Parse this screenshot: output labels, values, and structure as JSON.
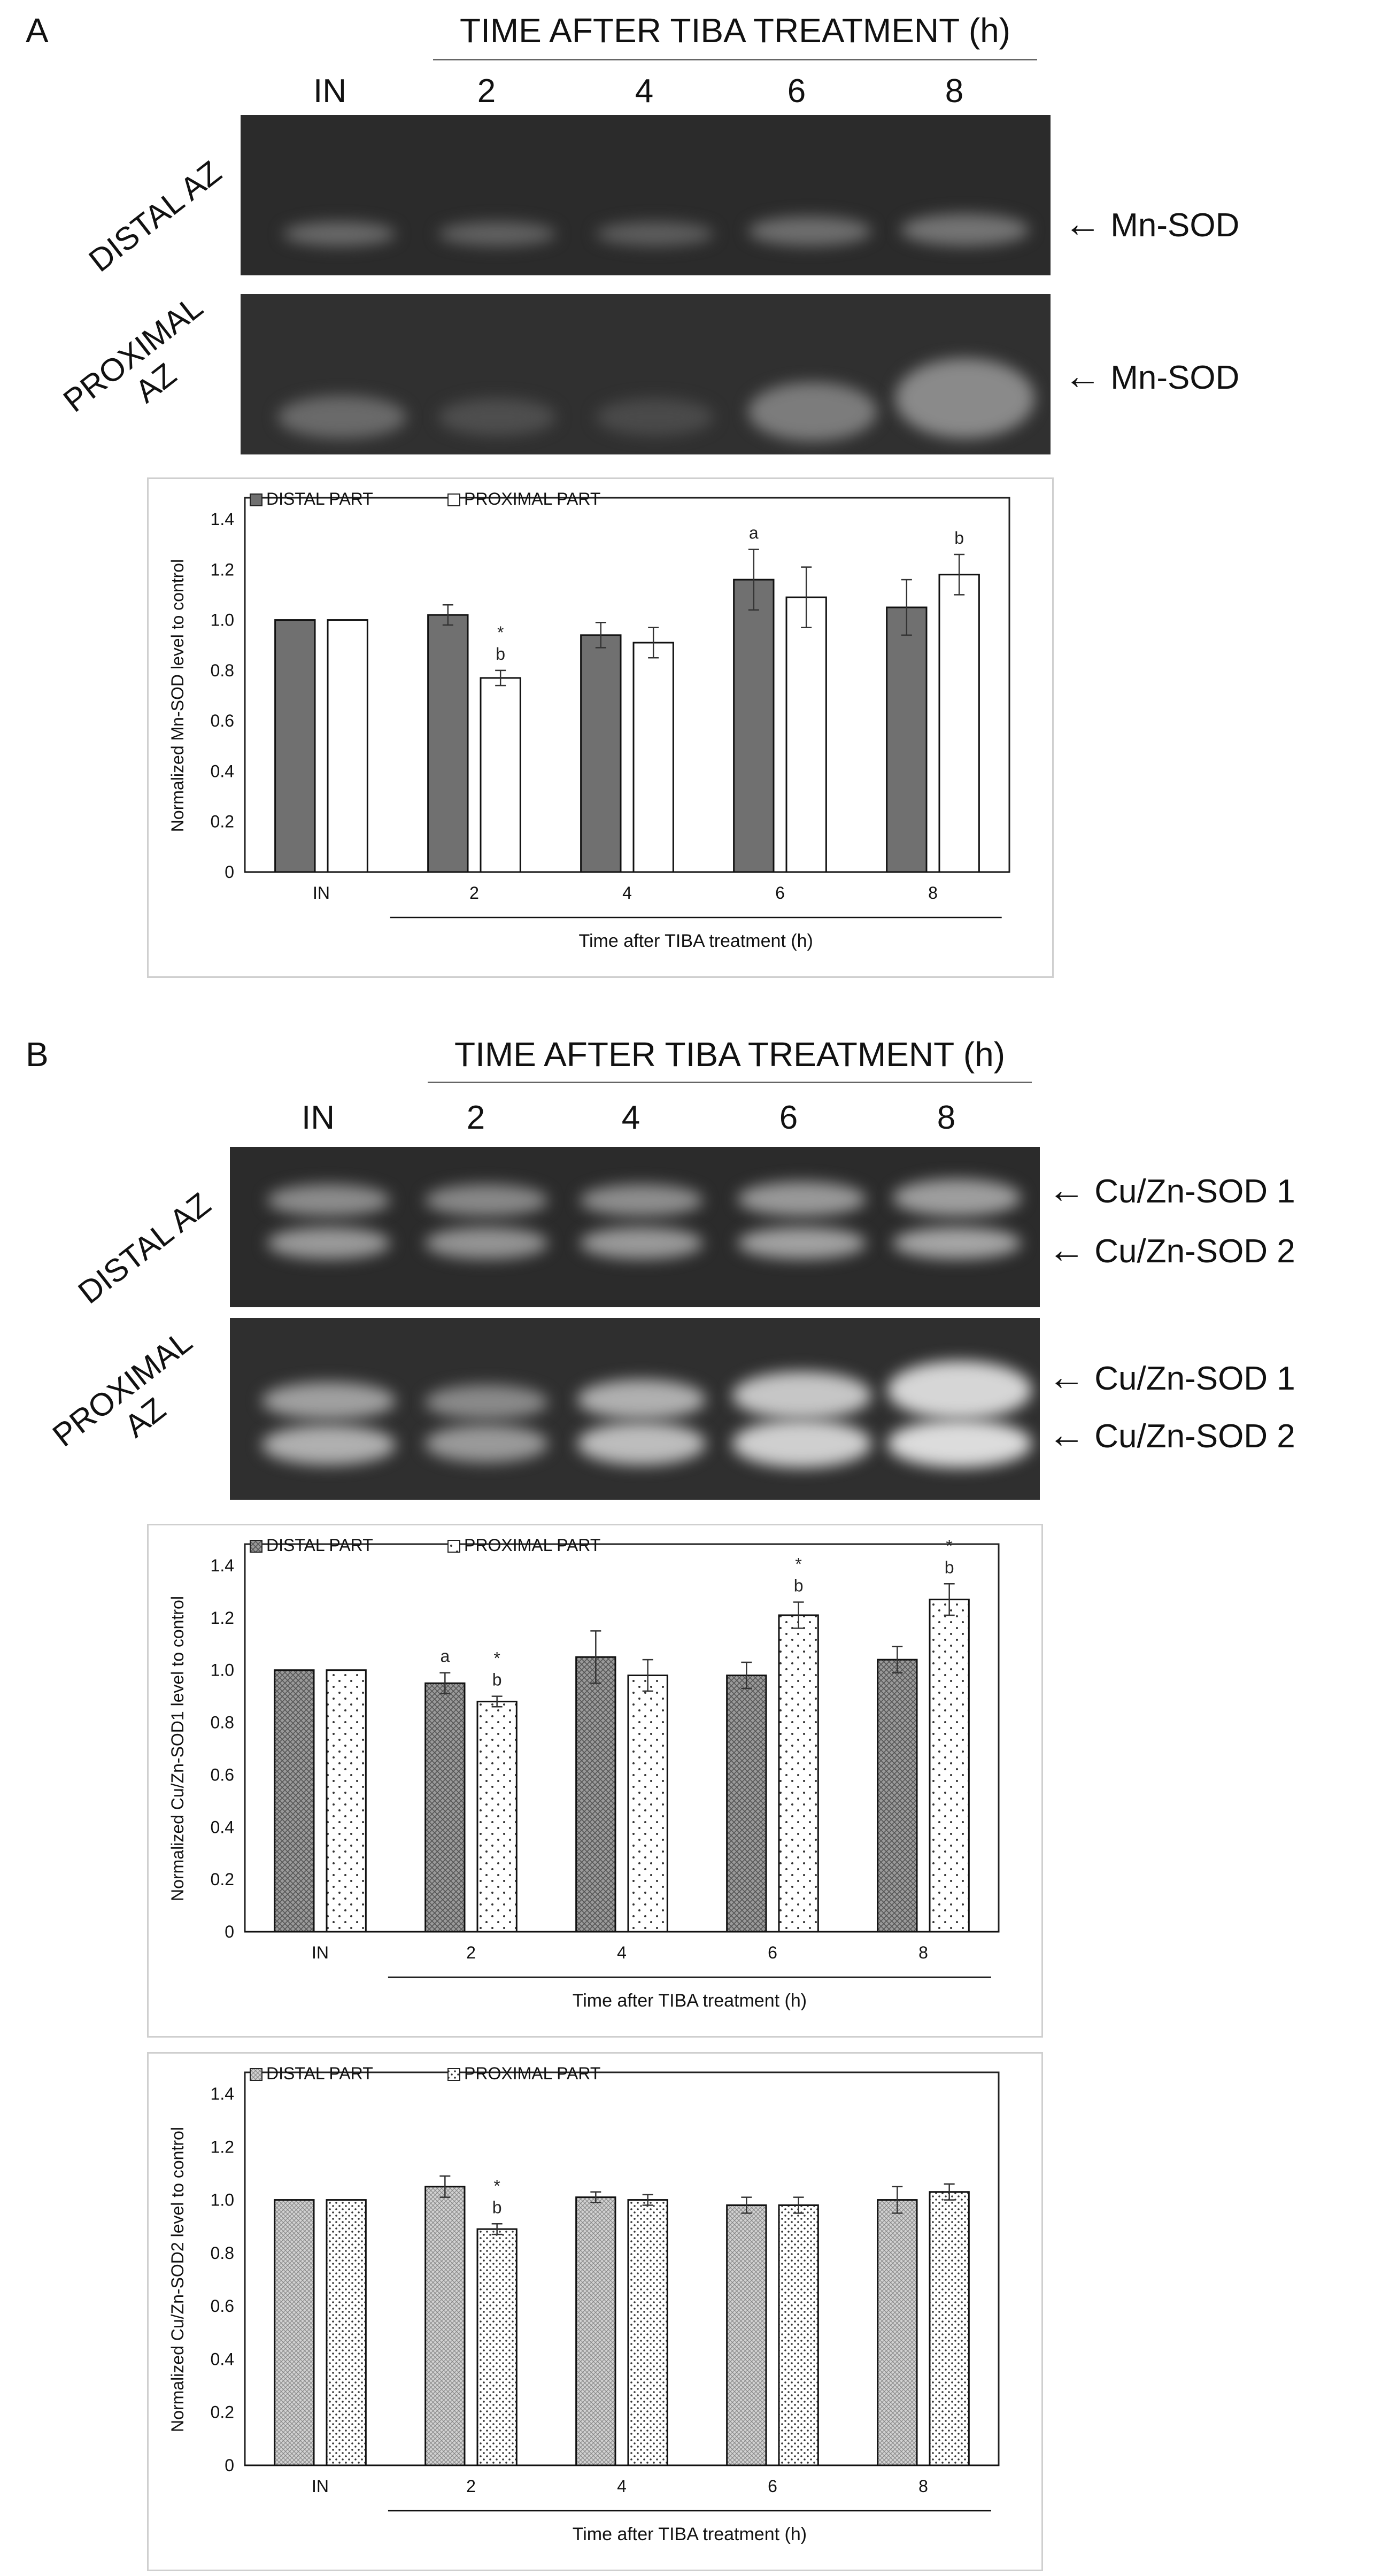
{
  "panelA": {
    "letter": "A",
    "header": "TIME AFTER TIBA TREATMENT (h)",
    "lanes": [
      "IN",
      "2",
      "4",
      "6",
      "8"
    ],
    "gel_distal": {
      "label_line1": "DISTAL AZ",
      "label_line2": "",
      "band_label": "Mn-SOD"
    },
    "gel_proximal": {
      "label_line1": "PROXIMAL",
      "label_line2": "AZ",
      "band_label": "Mn-SOD"
    }
  },
  "panelB": {
    "letter": "B",
    "header": "TIME AFTER TIBA TREATMENT (h)",
    "lanes": [
      "IN",
      "2",
      "4",
      "6",
      "8"
    ],
    "gel_distal": {
      "label_line1": "DISTAL AZ",
      "label_line2": "",
      "band_label_1": "Cu/Zn-SOD 1",
      "band_label_2": "Cu/Zn-SOD 2"
    },
    "gel_proximal": {
      "label_line1": "PROXIMAL",
      "label_line2": "AZ",
      "band_label_1": "Cu/Zn-SOD 1",
      "band_label_2": "Cu/Zn-SOD 2"
    }
  },
  "colors": {
    "distal_fill": "#707070",
    "proximal_fill": "#ffffff",
    "gel_bg": "#2b2b2b",
    "band": "#d8d8d8"
  },
  "chart_data": [
    {
      "id": "mn-sod",
      "type": "bar",
      "categories": [
        "IN",
        "2",
        "4",
        "6",
        "8"
      ],
      "xlabel": "Time after TIBA treatment (h)",
      "ylabel": "Normalized Mn-SOD level to control",
      "ylim": [
        0,
        1.4
      ],
      "yticks": [
        "0",
        "0.2",
        "0.4",
        "0.6",
        "0.8",
        "1.0",
        "1.2",
        "1.4"
      ],
      "legend_position": "top-left",
      "series": [
        {
          "name": "DISTAL PART",
          "pattern": "solid-gray",
          "values": [
            1.0,
            1.02,
            0.94,
            1.16,
            1.05
          ],
          "errors": [
            0,
            0.04,
            0.05,
            0.12,
            0.11
          ],
          "annotations": [
            "",
            "",
            "",
            "a",
            ""
          ]
        },
        {
          "name": "PROXIMAL PART",
          "pattern": "white",
          "values": [
            1.0,
            0.77,
            0.91,
            1.09,
            1.18
          ],
          "errors": [
            0,
            0.03,
            0.06,
            0.12,
            0.08
          ],
          "annotations": [
            "",
            "*\nb",
            "",
            "",
            "b"
          ]
        }
      ]
    },
    {
      "id": "cuzn-sod1",
      "type": "bar",
      "categories": [
        "IN",
        "2",
        "4",
        "6",
        "8"
      ],
      "xlabel": "Time after TIBA treatment (h)",
      "ylabel": "Normalized Cu/Zn-SOD1 level to control",
      "ylim": [
        0,
        1.4
      ],
      "yticks": [
        "0",
        "0.2",
        "0.4",
        "0.6",
        "0.8",
        "1.0",
        "1.2",
        "1.4"
      ],
      "legend_position": "top-left",
      "series": [
        {
          "name": "DISTAL PART",
          "pattern": "crosshatch",
          "values": [
            1.0,
            0.95,
            1.05,
            0.98,
            1.04
          ],
          "errors": [
            0,
            0.04,
            0.1,
            0.05,
            0.05
          ],
          "annotations": [
            "",
            "a",
            "",
            "",
            ""
          ]
        },
        {
          "name": "PROXIMAL PART",
          "pattern": "dots",
          "values": [
            1.0,
            0.88,
            0.98,
            1.21,
            1.27
          ],
          "errors": [
            0,
            0.02,
            0.06,
            0.05,
            0.06
          ],
          "annotations": [
            "",
            "*\nb",
            "",
            "*\nb",
            "*\nb"
          ]
        }
      ]
    },
    {
      "id": "cuzn-sod2",
      "type": "bar",
      "categories": [
        "IN",
        "2",
        "4",
        "6",
        "8"
      ],
      "xlabel": "Time after TIBA treatment (h)",
      "ylabel": "Normalized Cu/Zn-SOD2 level to control",
      "ylim": [
        0,
        1.4
      ],
      "yticks": [
        "0",
        "0.2",
        "0.4",
        "0.6",
        "0.8",
        "1.0",
        "1.2",
        "1.4"
      ],
      "legend_position": "top-left",
      "series": [
        {
          "name": "DISTAL PART",
          "pattern": "fine-hatch",
          "values": [
            1.0,
            1.05,
            1.01,
            0.98,
            1.0
          ],
          "errors": [
            0,
            0.04,
            0.02,
            0.03,
            0.05
          ],
          "annotations": [
            "",
            "",
            "",
            "",
            ""
          ]
        },
        {
          "name": "PROXIMAL PART",
          "pattern": "dots-dense",
          "values": [
            1.0,
            0.89,
            1.0,
            0.98,
            1.03
          ],
          "errors": [
            0,
            0.02,
            0.02,
            0.03,
            0.03
          ],
          "annotations": [
            "",
            "*\nb",
            "",
            "",
            ""
          ]
        }
      ]
    }
  ]
}
